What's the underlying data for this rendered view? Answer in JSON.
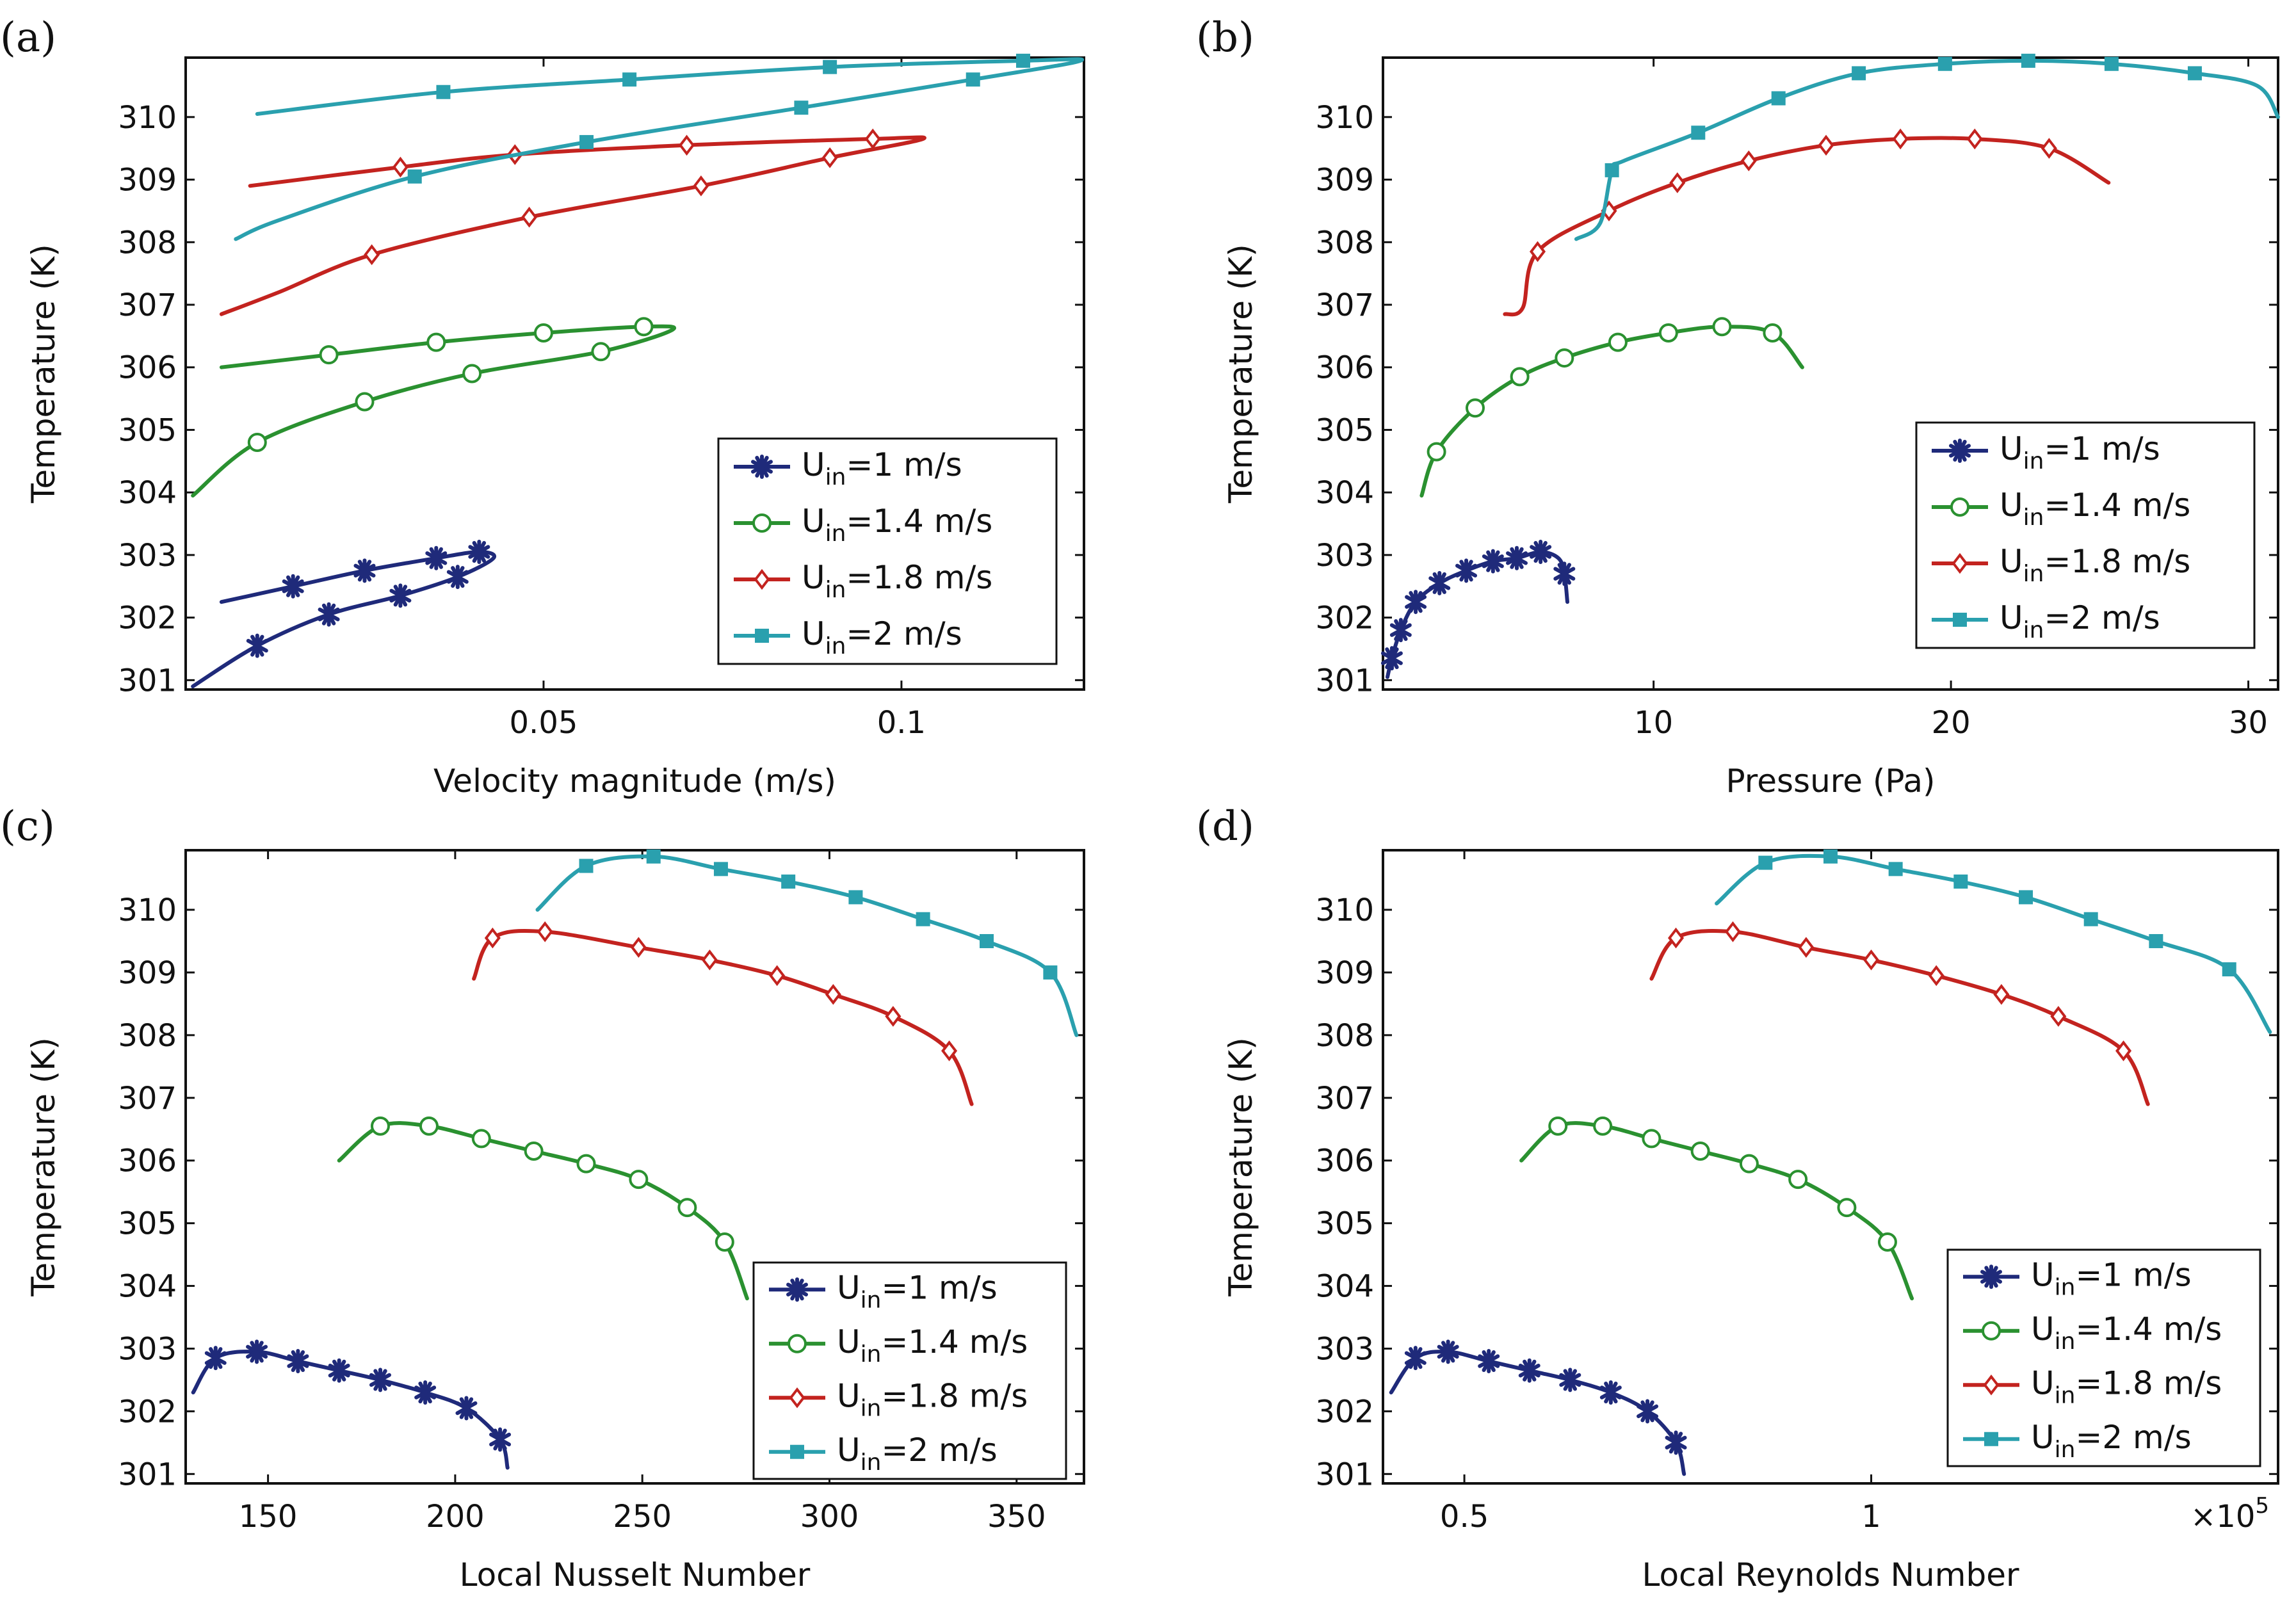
{
  "colors": {
    "u1": "#1f2a7a",
    "u14": "#2a9130",
    "u18": "#c3231f",
    "u2": "#2aa0ae"
  },
  "legend": {
    "symbol": "U",
    "subscript": "in",
    "entries": [
      {
        "series": "u1",
        "marker": "star",
        "label": "=1 m/s"
      },
      {
        "series": "u14",
        "marker": "circle",
        "label": "=1.4 m/s"
      },
      {
        "series": "u18",
        "marker": "diamond",
        "label": "=1.8 m/s"
      },
      {
        "series": "u2",
        "marker": "square",
        "label": "=2 m/s"
      }
    ]
  },
  "chart_data": [
    {
      "id": "a",
      "panel_label": "(a)",
      "type": "line",
      "title": "",
      "xlabel": "Velocity magnitude (m/s)",
      "ylabel": "Temperature (K)",
      "xlim": [
        0.0,
        0.1255
      ],
      "ylim": [
        300.85,
        310.95
      ],
      "xticks": [
        0.05,
        0.1
      ],
      "xtick_labels": [
        "0.05",
        "0.1"
      ],
      "yticks": [
        301,
        302,
        303,
        304,
        305,
        306,
        307,
        308,
        309,
        310
      ],
      "legend_position": "bottom-right",
      "series": [
        {
          "key": "u1",
          "name": "U_in=1 m/s",
          "marker": "star",
          "x": [
            0.001,
            0.01,
            0.02,
            0.03,
            0.038,
            0.043,
            0.041,
            0.035,
            0.025,
            0.015,
            0.005
          ],
          "y": [
            300.9,
            301.55,
            302.05,
            302.35,
            302.65,
            302.95,
            303.05,
            302.95,
            302.75,
            302.5,
            302.25
          ],
          "marker_idx": [
            1,
            2,
            3,
            4,
            6,
            7,
            8,
            9
          ]
        },
        {
          "key": "u14",
          "name": "U_in=1.4 m/s",
          "marker": "circle",
          "x": [
            0.001,
            0.01,
            0.025,
            0.04,
            0.058,
            0.068,
            0.064,
            0.05,
            0.035,
            0.02,
            0.005
          ],
          "y": [
            303.95,
            304.8,
            305.45,
            305.9,
            306.25,
            306.6,
            306.65,
            306.55,
            306.4,
            306.2,
            306.0
          ],
          "marker_idx": [
            1,
            2,
            3,
            4,
            6,
            7,
            8,
            9
          ]
        },
        {
          "key": "u18",
          "name": "U_in=1.8 m/s",
          "marker": "diamond",
          "x": [
            0.005,
            0.013,
            0.026,
            0.048,
            0.072,
            0.09,
            0.103,
            0.096,
            0.07,
            0.046,
            0.03,
            0.009
          ],
          "y": [
            306.85,
            307.2,
            307.8,
            308.4,
            308.9,
            309.35,
            309.65,
            309.65,
            309.55,
            309.4,
            309.2,
            308.9
          ],
          "marker_idx": [
            2,
            3,
            4,
            5,
            7,
            8,
            9,
            10
          ]
        },
        {
          "key": "u2",
          "name": "U_in=2 m/s",
          "marker": "square",
          "x": [
            0.007,
            0.013,
            0.032,
            0.056,
            0.086,
            0.11,
            0.125,
            0.117,
            0.09,
            0.062,
            0.036,
            0.01
          ],
          "y": [
            308.05,
            308.35,
            309.05,
            309.6,
            310.15,
            310.6,
            310.9,
            310.9,
            310.8,
            310.6,
            310.4,
            310.05
          ],
          "marker_idx": [
            2,
            3,
            4,
            5,
            7,
            8,
            9,
            10
          ]
        }
      ]
    },
    {
      "id": "b",
      "panel_label": "(b)",
      "type": "line",
      "title": "",
      "xlabel": "Pressure (Pa)",
      "ylabel": "Temperature (K)",
      "xlim": [
        0.9,
        31.0
      ],
      "ylim": [
        300.85,
        310.95
      ],
      "xticks": [
        10,
        20,
        30
      ],
      "xtick_labels": [
        "10",
        "20",
        "30"
      ],
      "yticks": [
        301,
        302,
        303,
        304,
        305,
        306,
        307,
        308,
        309,
        310
      ],
      "legend_position": "bottom-right",
      "series": [
        {
          "key": "u1",
          "name": "U_in=1 m/s",
          "marker": "star",
          "x": [
            1.05,
            1.2,
            1.5,
            2.0,
            2.8,
            3.7,
            4.6,
            5.4,
            6.2,
            6.8,
            7.0,
            7.1
          ],
          "y": [
            301.05,
            301.35,
            301.8,
            302.25,
            302.55,
            302.75,
            302.9,
            302.95,
            303.05,
            302.95,
            302.7,
            302.25
          ],
          "marker_idx": [
            1,
            2,
            3,
            4,
            5,
            6,
            7,
            8,
            10
          ]
        },
        {
          "key": "u14",
          "name": "U_in=1.4 m/s",
          "marker": "circle",
          "x": [
            2.2,
            2.7,
            4.0,
            5.5,
            7.0,
            8.8,
            10.5,
            12.3,
            14.0,
            15.0
          ],
          "y": [
            303.95,
            304.65,
            305.35,
            305.85,
            306.15,
            306.4,
            306.55,
            306.65,
            306.55,
            306.0
          ],
          "marker_idx": [
            1,
            2,
            3,
            4,
            5,
            6,
            7,
            8
          ]
        },
        {
          "key": "u18",
          "name": "U_in=1.8 m/s",
          "marker": "diamond",
          "x": [
            5.0,
            5.6,
            6.1,
            8.5,
            10.8,
            13.2,
            15.8,
            18.3,
            20.8,
            23.3,
            25.3
          ],
          "y": [
            306.85,
            306.95,
            307.85,
            308.5,
            308.95,
            309.3,
            309.55,
            309.65,
            309.65,
            309.5,
            308.95
          ],
          "marker_idx": [
            2,
            3,
            4,
            5,
            6,
            7,
            8,
            9
          ]
        },
        {
          "key": "u2",
          "name": "U_in=2 m/s",
          "marker": "square",
          "x": [
            7.4,
            8.2,
            8.6,
            9.0,
            11.5,
            14.2,
            16.9,
            19.8,
            22.6,
            25.4,
            28.2,
            30.3,
            31.0
          ],
          "y": [
            308.05,
            308.3,
            309.15,
            309.3,
            309.75,
            310.3,
            310.7,
            310.85,
            310.9,
            310.85,
            310.7,
            310.5,
            310.0
          ],
          "marker_idx": [
            2,
            4,
            5,
            6,
            7,
            8,
            9,
            10
          ]
        }
      ]
    },
    {
      "id": "c",
      "panel_label": "(c)",
      "type": "line",
      "title": "",
      "xlabel": "Local Nusselt Number",
      "ylabel": "Temperature (K)",
      "xlim": [
        128,
        368
      ],
      "ylim": [
        300.85,
        310.95
      ],
      "xticks": [
        150,
        200,
        250,
        300,
        350
      ],
      "xtick_labels": [
        "150",
        "200",
        "250",
        "300",
        "350"
      ],
      "yticks": [
        301,
        302,
        303,
        304,
        305,
        306,
        307,
        308,
        309,
        310
      ],
      "legend_position": "bottom-right",
      "series": [
        {
          "key": "u1",
          "name": "U_in=1 m/s",
          "marker": "star",
          "x": [
            130,
            136,
            147,
            158,
            169,
            180,
            192,
            203,
            212,
            214
          ],
          "y": [
            302.3,
            302.85,
            302.95,
            302.8,
            302.65,
            302.5,
            302.3,
            302.05,
            301.55,
            301.1
          ],
          "marker_idx": [
            1,
            2,
            3,
            4,
            5,
            6,
            7,
            8
          ]
        },
        {
          "key": "u14",
          "name": "U_in=1.4 m/s",
          "marker": "circle",
          "x": [
            169,
            180,
            193,
            207,
            221,
            235,
            249,
            262,
            272,
            278
          ],
          "y": [
            306.0,
            306.55,
            306.55,
            306.35,
            306.15,
            305.95,
            305.7,
            305.25,
            304.7,
            303.8
          ],
          "marker_idx": [
            1,
            2,
            3,
            4,
            5,
            6,
            7,
            8
          ]
        },
        {
          "key": "u18",
          "name": "U_in=1.8 m/s",
          "marker": "diamond",
          "x": [
            205,
            210,
            224,
            249,
            268,
            286,
            301,
            317,
            332,
            338
          ],
          "y": [
            308.9,
            309.55,
            309.65,
            309.4,
            309.2,
            308.95,
            308.65,
            308.3,
            307.75,
            306.9
          ],
          "marker_idx": [
            1,
            2,
            3,
            4,
            5,
            6,
            7,
            8
          ]
        },
        {
          "key": "u2",
          "name": "U_in=2 m/s",
          "marker": "square",
          "x": [
            222,
            235,
            253,
            271,
            289,
            307,
            325,
            342,
            359,
            366
          ],
          "y": [
            310.0,
            310.7,
            310.85,
            310.65,
            310.45,
            310.2,
            309.85,
            309.5,
            309.0,
            308.0
          ],
          "marker_idx": [
            1,
            2,
            3,
            4,
            5,
            6,
            7,
            8
          ]
        }
      ]
    },
    {
      "id": "d",
      "panel_label": "(d)",
      "type": "line",
      "title": "",
      "xlabel": "Local Reynolds Number",
      "ylabel": "Temperature (K)",
      "xlim": [
        0.4,
        1.5
      ],
      "ylim": [
        300.85,
        310.95
      ],
      "xticks": [
        0.5,
        1
      ],
      "xtick_labels": [
        "0.5",
        "1"
      ],
      "x_multiplier": "×10",
      "x_multiplier_exp": "5",
      "yticks": [
        301,
        302,
        303,
        304,
        305,
        306,
        307,
        308,
        309,
        310
      ],
      "legend_position": "bottom-right",
      "series": [
        {
          "key": "u1",
          "name": "U_in=1 m/s",
          "marker": "star",
          "x": [
            0.41,
            0.44,
            0.48,
            0.53,
            0.58,
            0.63,
            0.68,
            0.725,
            0.76,
            0.77
          ],
          "y": [
            302.3,
            302.85,
            302.95,
            302.8,
            302.65,
            302.5,
            302.3,
            302.0,
            301.5,
            301.0
          ],
          "marker_idx": [
            1,
            2,
            3,
            4,
            5,
            6,
            7,
            8
          ]
        },
        {
          "key": "u14",
          "name": "U_in=1.4 m/s",
          "marker": "circle",
          "x": [
            0.57,
            0.615,
            0.67,
            0.73,
            0.79,
            0.85,
            0.91,
            0.97,
            1.02,
            1.05
          ],
          "y": [
            306.0,
            306.55,
            306.55,
            306.35,
            306.15,
            305.95,
            305.7,
            305.25,
            304.7,
            303.8
          ],
          "marker_idx": [
            1,
            2,
            3,
            4,
            5,
            6,
            7,
            8
          ]
        },
        {
          "key": "u18",
          "name": "U_in=1.8 m/s",
          "marker": "diamond",
          "x": [
            0.73,
            0.76,
            0.83,
            0.92,
            1.0,
            1.08,
            1.16,
            1.23,
            1.31,
            1.34
          ],
          "y": [
            308.9,
            309.55,
            309.65,
            309.4,
            309.2,
            308.95,
            308.65,
            308.3,
            307.75,
            306.9
          ],
          "marker_idx": [
            1,
            2,
            3,
            4,
            5,
            6,
            7,
            8
          ]
        },
        {
          "key": "u2",
          "name": "U_in=2 m/s",
          "marker": "square",
          "x": [
            0.81,
            0.87,
            0.95,
            1.03,
            1.11,
            1.19,
            1.27,
            1.35,
            1.44,
            1.49
          ],
          "y": [
            310.1,
            310.75,
            310.85,
            310.65,
            310.45,
            310.2,
            309.85,
            309.5,
            309.05,
            308.05
          ],
          "marker_idx": [
            1,
            2,
            3,
            4,
            5,
            6,
            7,
            8
          ]
        }
      ]
    }
  ]
}
